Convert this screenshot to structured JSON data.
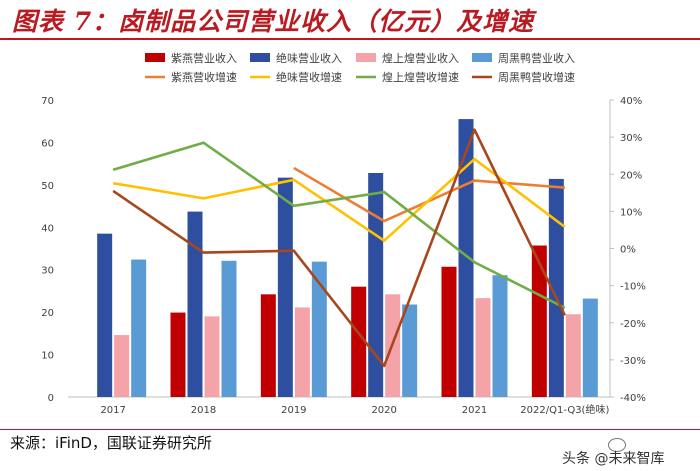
{
  "title": "图表 7：卤制品公司营业收入（亿元）及增速",
  "source": "来源：iFinD，国联证券研究所",
  "watermark": "头条 @未来智库",
  "chart_data": {
    "type": "bar",
    "categories": [
      "2017",
      "2018",
      "2019",
      "2020",
      "2021",
      "2022/Q1-Q3(绝味)"
    ],
    "ylim": [
      0,
      70
    ],
    "yticks": [
      0,
      10,
      20,
      30,
      40,
      50,
      60,
      70
    ],
    "y2lim": [
      -40,
      40
    ],
    "y2ticks": [
      "-40%",
      "-30%",
      "-20%",
      "-10%",
      "0%",
      "10%",
      "20%",
      "30%",
      "40%"
    ],
    "y2tick_values": [
      -40,
      -30,
      -20,
      -10,
      0,
      10,
      20,
      30,
      40
    ],
    "grid": false,
    "legend_position": "top",
    "bar_series": [
      {
        "name": "紫燕营业收入",
        "color": "#c00000",
        "values": [
          null,
          19.9,
          24.2,
          26.0,
          30.7,
          35.7
        ]
      },
      {
        "name": "绝味营业收入",
        "color": "#2e4f9f",
        "values": [
          38.5,
          43.7,
          51.7,
          52.8,
          65.5,
          51.4
        ]
      },
      {
        "name": "煌上煌营业收入",
        "color": "#f4a3a8",
        "values": [
          14.6,
          19.0,
          21.1,
          24.2,
          23.3,
          19.5
        ]
      },
      {
        "name": "周黑鸭营业收入",
        "color": "#5b9bd5",
        "values": [
          32.4,
          32.1,
          31.9,
          21.8,
          28.7,
          23.2
        ]
      }
    ],
    "line_series": [
      {
        "name": "紫燕营收增速",
        "color": "#ed7d31",
        "values": [
          null,
          null,
          21.7,
          7.4,
          18.3,
          16.4
        ]
      },
      {
        "name": "绝味营收增速",
        "color": "#ffc000",
        "values": [
          17.6,
          13.5,
          18.5,
          2.1,
          24.1,
          5.8
        ]
      },
      {
        "name": "煌上煌营收增速",
        "color": "#70ad47",
        "values": [
          21.2,
          28.5,
          11.5,
          15.2,
          -3.7,
          -16.0
        ]
      },
      {
        "name": "周黑鸭营收增速",
        "color": "#a9461d",
        "values": [
          15.5,
          -1.1,
          -0.6,
          -31.6,
          32.0,
          -18.0
        ]
      }
    ]
  }
}
